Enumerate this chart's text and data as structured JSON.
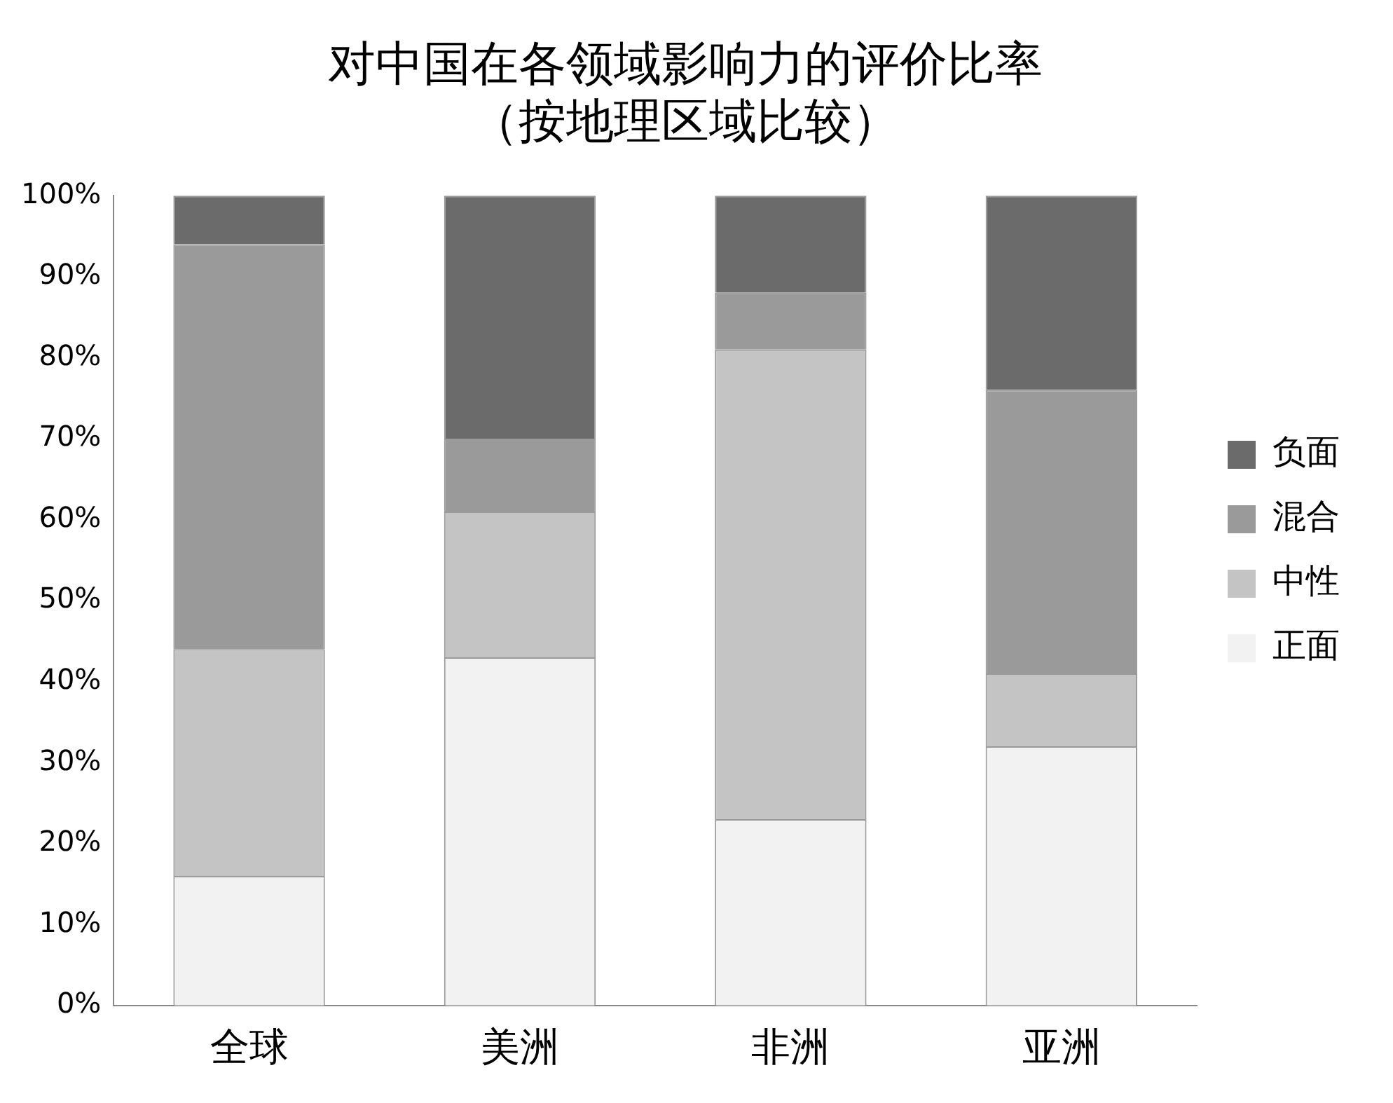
{
  "chart_data": {
    "type": "bar",
    "title": [
      "对中国在各领域影响力的评价比率",
      "（按地理区域比较）"
    ],
    "categories": [
      "全球",
      "美洲",
      "非洲",
      "亚洲"
    ],
    "stacked": true,
    "legend": "right",
    "grid": false,
    "series": [
      {
        "name": "正面",
        "color": "#f2f2f2",
        "values": [
          16,
          43,
          23,
          32
        ]
      },
      {
        "name": "中性",
        "color": "#c4c4c4",
        "values": [
          28,
          18,
          58,
          9
        ]
      },
      {
        "name": "混合",
        "color": "#9a9a9a",
        "values": [
          50,
          9,
          7,
          35
        ]
      },
      {
        "name": "负面",
        "color": "#6b6b6b",
        "values": [
          6,
          30,
          12,
          24
        ]
      }
    ],
    "ylim": [
      0,
      100
    ],
    "yticks": [
      {
        "value": 0,
        "label": "0%"
      },
      {
        "value": 10,
        "label": "10%"
      },
      {
        "value": 20,
        "label": "20%"
      },
      {
        "value": 30,
        "label": "30%"
      },
      {
        "value": 40,
        "label": "40%"
      },
      {
        "value": 50,
        "label": "50%"
      },
      {
        "value": 60,
        "label": "60%"
      },
      {
        "value": 70,
        "label": "70%"
      },
      {
        "value": 80,
        "label": "80%"
      },
      {
        "value": 90,
        "label": "90%"
      },
      {
        "value": 100,
        "label": "100%"
      }
    ]
  }
}
